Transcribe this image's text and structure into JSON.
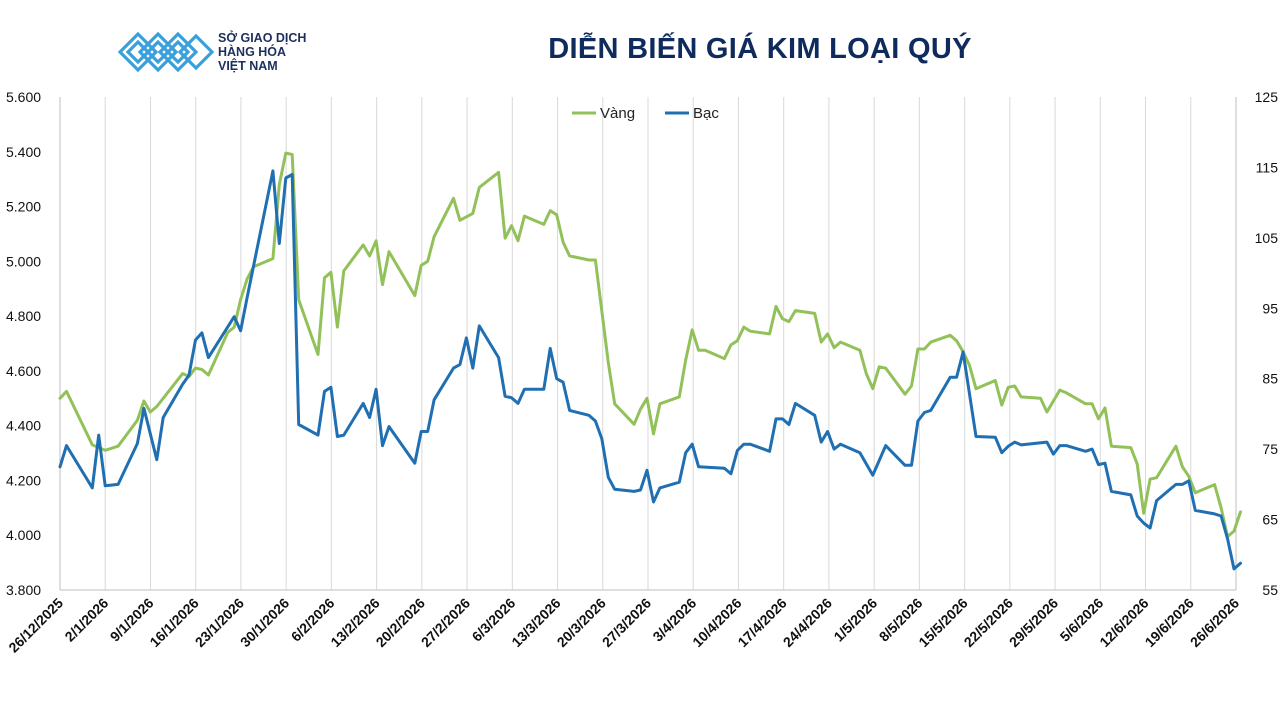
{
  "header": {
    "logo_line1": "SỞ GIAO DỊCH",
    "logo_line2": "HÀNG HÓA",
    "logo_line3": "VIỆT NAM",
    "logo_mark": "TM",
    "title": "DIỄN BIẾN GIÁ KIM LOẠI QUÝ"
  },
  "colors": {
    "gold": "#92c15a",
    "silver": "#1f6fb2",
    "logo_blue": "#3aa0dc",
    "grid": "#d9d9d9"
  },
  "chart_data": {
    "type": "line",
    "title": "DIỄN BIẾN GIÁ KIM LOẠI QUÝ",
    "legend_position": "top-center",
    "grid": "vertical",
    "y_left": {
      "min": 3800,
      "max": 5600,
      "step": 200,
      "tick_labels": [
        "3.800",
        "4.000",
        "4.200",
        "4.400",
        "4.600",
        "4.800",
        "5.000",
        "5.200",
        "5.400",
        "5.600"
      ]
    },
    "y_right": {
      "min": 55,
      "max": 125,
      "step": 10,
      "tick_labels": [
        "55",
        "65",
        "75",
        "85",
        "95",
        "105",
        "115",
        "125"
      ]
    },
    "x_range": [
      "2025-12-26",
      "2026-06-26"
    ],
    "x_tick_labels": [
      "26/12/2025",
      "2/1/2026",
      "9/1/2026",
      "16/1/2026",
      "23/1/2026",
      "30/1/2026",
      "6/2/2026",
      "13/2/2026",
      "20/2/2026",
      "27/2/2026",
      "6/3/2026",
      "13/3/2026",
      "20/3/2026",
      "27/3/2026",
      "3/4/2026",
      "10/4/2026",
      "17/4/2026",
      "24/4/2026",
      "1/5/2026",
      "8/5/2026",
      "15/5/2026",
      "22/5/2026",
      "29/5/2026",
      "5/6/2026",
      "12/6/2026",
      "19/6/2026",
      "26/6/2026"
    ],
    "series": [
      {
        "name": "Vàng",
        "axis": "left",
        "points": [
          [
            "2025-12-26",
            4500
          ],
          [
            "2025-12-27",
            4525
          ],
          [
            "2025-12-31",
            4330
          ],
          [
            "2026-01-01",
            4320
          ],
          [
            "2026-01-02",
            4310
          ],
          [
            "2026-01-04",
            4325
          ],
          [
            "2026-01-07",
            4420
          ],
          [
            "2026-01-08",
            4490
          ],
          [
            "2026-01-09",
            4450
          ],
          [
            "2026-01-10",
            4470
          ],
          [
            "2026-01-14",
            4590
          ],
          [
            "2026-01-15",
            4580
          ],
          [
            "2026-01-16",
            4610
          ],
          [
            "2026-01-17",
            4605
          ],
          [
            "2026-01-18",
            4585
          ],
          [
            "2026-01-21",
            4740
          ],
          [
            "2026-01-22",
            4760
          ],
          [
            "2026-01-23",
            4860
          ],
          [
            "2026-01-24",
            4935
          ],
          [
            "2026-01-25",
            4980
          ],
          [
            "2026-01-28",
            5010
          ],
          [
            "2026-01-29",
            5280
          ],
          [
            "2026-01-30",
            5395
          ],
          [
            "2026-01-31",
            5390
          ],
          [
            "2026-02-01",
            4860
          ],
          [
            "2026-02-04",
            4660
          ],
          [
            "2026-02-05",
            4940
          ],
          [
            "2026-02-06",
            4960
          ],
          [
            "2026-02-07",
            4760
          ],
          [
            "2026-02-08",
            4965
          ],
          [
            "2026-02-11",
            5060
          ],
          [
            "2026-02-12",
            5020
          ],
          [
            "2026-02-13",
            5075
          ],
          [
            "2026-02-14",
            4915
          ],
          [
            "2026-02-15",
            5035
          ],
          [
            "2026-02-19",
            4875
          ],
          [
            "2026-02-20",
            4985
          ],
          [
            "2026-02-21",
            5000
          ],
          [
            "2026-02-22",
            5090
          ],
          [
            "2026-02-25",
            5230
          ],
          [
            "2026-02-26",
            5150
          ],
          [
            "2026-02-28",
            5175
          ],
          [
            "2026-03-01",
            5270
          ],
          [
            "2026-03-04",
            5325
          ],
          [
            "2026-03-05",
            5085
          ],
          [
            "2026-03-06",
            5130
          ],
          [
            "2026-03-07",
            5075
          ],
          [
            "2026-03-08",
            5165
          ],
          [
            "2026-03-11",
            5135
          ],
          [
            "2026-03-12",
            5185
          ],
          [
            "2026-03-13",
            5170
          ],
          [
            "2026-03-14",
            5070
          ],
          [
            "2026-03-15",
            5020
          ],
          [
            "2026-03-18",
            5005
          ],
          [
            "2026-03-19",
            5005
          ],
          [
            "2026-03-21",
            4630
          ],
          [
            "2026-03-22",
            4480
          ],
          [
            "2026-03-25",
            4405
          ],
          [
            "2026-03-26",
            4460
          ],
          [
            "2026-03-27",
            4500
          ],
          [
            "2026-03-28",
            4370
          ],
          [
            "2026-03-29",
            4480
          ],
          [
            "2026-04-01",
            4505
          ],
          [
            "2026-04-02",
            4640
          ],
          [
            "2026-04-03",
            4750
          ],
          [
            "2026-04-04",
            4675
          ],
          [
            "2026-04-05",
            4675
          ],
          [
            "2026-04-08",
            4645
          ],
          [
            "2026-04-09",
            4695
          ],
          [
            "2026-04-10",
            4710
          ],
          [
            "2026-04-11",
            4760
          ],
          [
            "2026-04-12",
            4745
          ],
          [
            "2026-04-15",
            4735
          ],
          [
            "2026-04-16",
            4835
          ],
          [
            "2026-04-17",
            4790
          ],
          [
            "2026-04-18",
            4780
          ],
          [
            "2026-04-19",
            4820
          ],
          [
            "2026-04-22",
            4810
          ],
          [
            "2026-04-23",
            4705
          ],
          [
            "2026-04-24",
            4735
          ],
          [
            "2026-04-25",
            4685
          ],
          [
            "2026-04-26",
            4705
          ],
          [
            "2026-04-29",
            4675
          ],
          [
            "2026-04-30",
            4590
          ],
          [
            "2026-05-01",
            4535
          ],
          [
            "2026-05-02",
            4615
          ],
          [
            "2026-05-03",
            4610
          ],
          [
            "2026-05-06",
            4515
          ],
          [
            "2026-05-07",
            4545
          ],
          [
            "2026-05-08",
            4680
          ],
          [
            "2026-05-09",
            4680
          ],
          [
            "2026-05-10",
            4705
          ],
          [
            "2026-05-13",
            4730
          ],
          [
            "2026-05-14",
            4710
          ],
          [
            "2026-05-15",
            4670
          ],
          [
            "2026-05-16",
            4620
          ],
          [
            "2026-05-17",
            4535
          ],
          [
            "2026-05-20",
            4565
          ],
          [
            "2026-05-21",
            4475
          ],
          [
            "2026-05-22",
            4540
          ],
          [
            "2026-05-23",
            4545
          ],
          [
            "2026-05-24",
            4505
          ],
          [
            "2026-05-27",
            4500
          ],
          [
            "2026-05-28",
            4450
          ],
          [
            "2026-05-29",
            4490
          ],
          [
            "2026-05-30",
            4530
          ],
          [
            "2026-05-31",
            4520
          ],
          [
            "2026-06-03",
            4480
          ],
          [
            "2026-06-04",
            4480
          ],
          [
            "2026-06-05",
            4425
          ],
          [
            "2026-06-06",
            4465
          ],
          [
            "2026-06-07",
            4325
          ],
          [
            "2026-06-10",
            4320
          ],
          [
            "2026-06-11",
            4260
          ],
          [
            "2026-06-12",
            4080
          ],
          [
            "2026-06-13",
            4205
          ],
          [
            "2026-06-14",
            4210
          ],
          [
            "2026-06-17",
            4325
          ],
          [
            "2026-06-18",
            4250
          ],
          [
            "2026-06-19",
            4215
          ],
          [
            "2026-06-20",
            4155
          ],
          [
            "2026-06-23",
            4185
          ],
          [
            "2026-06-24",
            4100
          ],
          [
            "2026-06-25",
            3995
          ],
          [
            "2026-06-26",
            4015
          ],
          [
            "2026-06-27",
            4085
          ]
        ]
      },
      {
        "name": "Bạc",
        "axis": "right",
        "points": [
          [
            "2025-12-26",
            72.5
          ],
          [
            "2025-12-27",
            75.5
          ],
          [
            "2025-12-31",
            69.5
          ],
          [
            "2026-01-01",
            77.0
          ],
          [
            "2026-01-02",
            69.8
          ],
          [
            "2026-01-04",
            70.0
          ],
          [
            "2026-01-07",
            75.8
          ],
          [
            "2026-01-08",
            80.8
          ],
          [
            "2026-01-10",
            73.5
          ],
          [
            "2026-01-11",
            79.5
          ],
          [
            "2026-01-14",
            84.2
          ],
          [
            "2026-01-15",
            85.5
          ],
          [
            "2026-01-16",
            90.5
          ],
          [
            "2026-01-17",
            91.5
          ],
          [
            "2026-01-18",
            88.0
          ],
          [
            "2026-01-22",
            93.8
          ],
          [
            "2026-01-23",
            91.8
          ],
          [
            "2026-01-24",
            96.5
          ],
          [
            "2026-01-28",
            114.5
          ],
          [
            "2026-01-29",
            104.2
          ],
          [
            "2026-01-30",
            113.5
          ],
          [
            "2026-01-31",
            114.0
          ],
          [
            "2026-02-01",
            78.5
          ],
          [
            "2026-02-04",
            77.0
          ],
          [
            "2026-02-05",
            83.2
          ],
          [
            "2026-02-06",
            83.8
          ],
          [
            "2026-02-07",
            76.8
          ],
          [
            "2026-02-08",
            77.0
          ],
          [
            "2026-02-11",
            81.5
          ],
          [
            "2026-02-12",
            79.5
          ],
          [
            "2026-02-13",
            83.5
          ],
          [
            "2026-02-14",
            75.5
          ],
          [
            "2026-02-15",
            78.2
          ],
          [
            "2026-02-19",
            73.0
          ],
          [
            "2026-02-20",
            77.5
          ],
          [
            "2026-02-21",
            77.5
          ],
          [
            "2026-02-22",
            82.0
          ],
          [
            "2026-02-25",
            86.5
          ],
          [
            "2026-02-26",
            87.0
          ],
          [
            "2026-02-27",
            90.8
          ],
          [
            "2026-02-28",
            86.5
          ],
          [
            "2026-03-01",
            92.5
          ],
          [
            "2026-03-04",
            88.0
          ],
          [
            "2026-03-05",
            82.5
          ],
          [
            "2026-03-06",
            82.3
          ],
          [
            "2026-03-07",
            81.5
          ],
          [
            "2026-03-08",
            83.5
          ],
          [
            "2026-03-11",
            83.5
          ],
          [
            "2026-03-12",
            89.3
          ],
          [
            "2026-03-13",
            85.0
          ],
          [
            "2026-03-14",
            84.5
          ],
          [
            "2026-03-15",
            80.5
          ],
          [
            "2026-03-18",
            79.8
          ],
          [
            "2026-03-19",
            79.0
          ],
          [
            "2026-03-20",
            76.5
          ],
          [
            "2026-03-21",
            71.0
          ],
          [
            "2026-03-22",
            69.3
          ],
          [
            "2026-03-25",
            69.0
          ],
          [
            "2026-03-26",
            69.2
          ],
          [
            "2026-03-27",
            72.0
          ],
          [
            "2026-03-28",
            67.5
          ],
          [
            "2026-03-29",
            69.5
          ],
          [
            "2026-04-01",
            70.3
          ],
          [
            "2026-04-02",
            74.5
          ],
          [
            "2026-04-03",
            75.7
          ],
          [
            "2026-04-04",
            72.5
          ],
          [
            "2026-04-08",
            72.3
          ],
          [
            "2026-04-09",
            71.5
          ],
          [
            "2026-04-10",
            74.8
          ],
          [
            "2026-04-11",
            75.7
          ],
          [
            "2026-04-12",
            75.7
          ],
          [
            "2026-04-15",
            74.7
          ],
          [
            "2026-04-16",
            79.3
          ],
          [
            "2026-04-17",
            79.3
          ],
          [
            "2026-04-18",
            78.5
          ],
          [
            "2026-04-19",
            81.5
          ],
          [
            "2026-04-22",
            79.8
          ],
          [
            "2026-04-23",
            76.0
          ],
          [
            "2026-04-24",
            77.5
          ],
          [
            "2026-04-25",
            75.0
          ],
          [
            "2026-04-26",
            75.7
          ],
          [
            "2026-04-29",
            74.5
          ],
          [
            "2026-05-01",
            71.3
          ],
          [
            "2026-05-03",
            75.5
          ],
          [
            "2026-05-06",
            72.7
          ],
          [
            "2026-05-07",
            72.7
          ],
          [
            "2026-05-08",
            79.0
          ],
          [
            "2026-05-09",
            80.2
          ],
          [
            "2026-05-10",
            80.5
          ],
          [
            "2026-05-13",
            85.2
          ],
          [
            "2026-05-14",
            85.2
          ],
          [
            "2026-05-15",
            88.8
          ],
          [
            "2026-05-17",
            76.8
          ],
          [
            "2026-05-20",
            76.7
          ],
          [
            "2026-05-21",
            74.5
          ],
          [
            "2026-05-22",
            75.4
          ],
          [
            "2026-05-23",
            76.0
          ],
          [
            "2026-05-24",
            75.6
          ],
          [
            "2026-05-28",
            76.0
          ],
          [
            "2026-05-29",
            74.3
          ],
          [
            "2026-05-30",
            75.5
          ],
          [
            "2026-05-31",
            75.5
          ],
          [
            "2026-06-03",
            74.7
          ],
          [
            "2026-06-04",
            75.0
          ],
          [
            "2026-06-05",
            72.8
          ],
          [
            "2026-06-06",
            73.0
          ],
          [
            "2026-06-07",
            69.0
          ],
          [
            "2026-06-10",
            68.5
          ],
          [
            "2026-06-11",
            65.5
          ],
          [
            "2026-06-12",
            64.5
          ],
          [
            "2026-06-13",
            63.8
          ],
          [
            "2026-06-14",
            67.7
          ],
          [
            "2026-06-17",
            70.0
          ],
          [
            "2026-06-18",
            70.0
          ],
          [
            "2026-06-19",
            70.5
          ],
          [
            "2026-06-20",
            66.3
          ],
          [
            "2026-06-23",
            65.8
          ],
          [
            "2026-06-24",
            65.5
          ],
          [
            "2026-06-25",
            62.3
          ],
          [
            "2026-06-26",
            58.0
          ],
          [
            "2026-06-27",
            58.8
          ]
        ]
      }
    ]
  }
}
